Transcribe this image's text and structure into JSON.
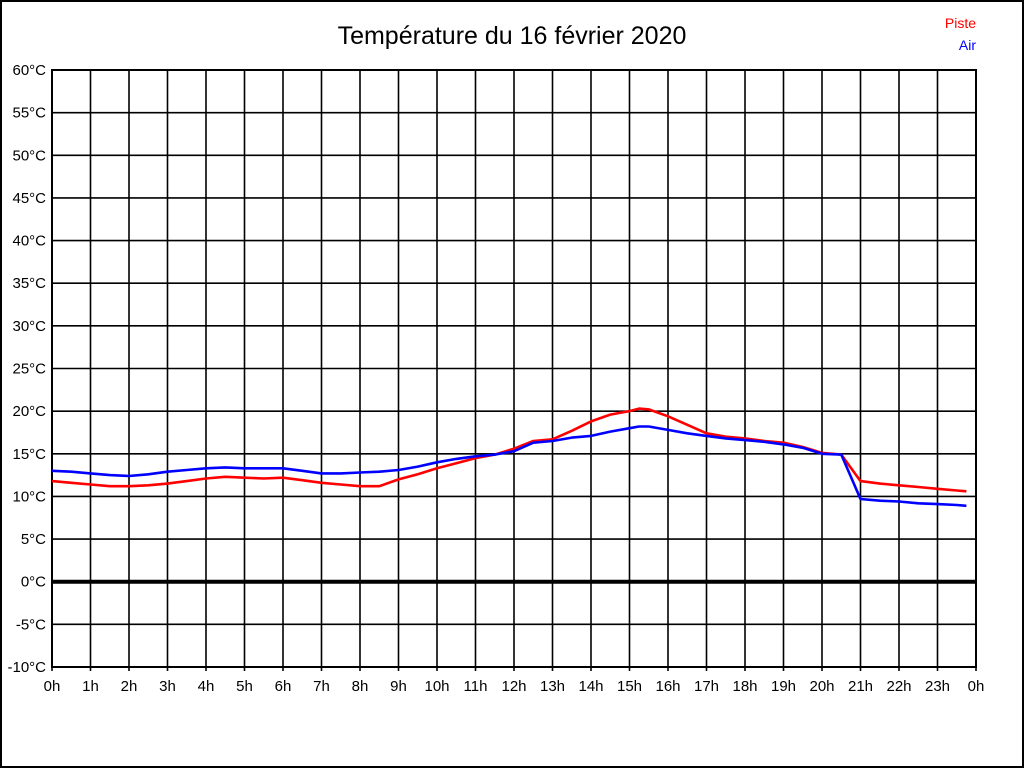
{
  "window": {
    "background": "#ffffff",
    "frame_color": "#000000"
  },
  "chart": {
    "title": "Température du 16 février 2020",
    "legend": [
      {
        "label": "Piste",
        "color": "#ff0000"
      },
      {
        "label": "Air",
        "color": "#0000ff"
      }
    ]
  },
  "chart_data": {
    "type": "line",
    "title": "Température du 16 février 2020",
    "xlabel": "",
    "ylabel": "°C",
    "x_unit": "hour",
    "xlim": [
      0,
      24
    ],
    "ylim": [
      -10,
      60
    ],
    "grid": true,
    "legend_position": "top-right",
    "zero_line": {
      "value": 0,
      "color": "#000000",
      "width": 4
    },
    "x_ticks": [
      {
        "value": 0,
        "label": "0h"
      },
      {
        "value": 1,
        "label": "1h"
      },
      {
        "value": 2,
        "label": "2h"
      },
      {
        "value": 3,
        "label": "3h"
      },
      {
        "value": 4,
        "label": "4h"
      },
      {
        "value": 5,
        "label": "5h"
      },
      {
        "value": 6,
        "label": "6h"
      },
      {
        "value": 7,
        "label": "7h"
      },
      {
        "value": 8,
        "label": "8h"
      },
      {
        "value": 9,
        "label": "9h"
      },
      {
        "value": 10,
        "label": "10h"
      },
      {
        "value": 11,
        "label": "11h"
      },
      {
        "value": 12,
        "label": "12h"
      },
      {
        "value": 13,
        "label": "13h"
      },
      {
        "value": 14,
        "label": "14h"
      },
      {
        "value": 15,
        "label": "15h"
      },
      {
        "value": 16,
        "label": "16h"
      },
      {
        "value": 17,
        "label": "17h"
      },
      {
        "value": 18,
        "label": "18h"
      },
      {
        "value": 19,
        "label": "19h"
      },
      {
        "value": 20,
        "label": "20h"
      },
      {
        "value": 21,
        "label": "21h"
      },
      {
        "value": 22,
        "label": "22h"
      },
      {
        "value": 23,
        "label": "23h"
      },
      {
        "value": 24,
        "label": "0h"
      }
    ],
    "y_ticks": [
      {
        "value": 60,
        "label": "60°C"
      },
      {
        "value": 55,
        "label": "55°C"
      },
      {
        "value": 50,
        "label": "50°C"
      },
      {
        "value": 45,
        "label": "45°C"
      },
      {
        "value": 40,
        "label": "40°C"
      },
      {
        "value": 35,
        "label": "35°C"
      },
      {
        "value": 30,
        "label": "30°C"
      },
      {
        "value": 25,
        "label": "25°C"
      },
      {
        "value": 20,
        "label": "20°C"
      },
      {
        "value": 15,
        "label": "15°C"
      },
      {
        "value": 10,
        "label": "10°C"
      },
      {
        "value": 5,
        "label": "5°C"
      },
      {
        "value": 0,
        "label": "0°C"
      },
      {
        "value": -5,
        "label": "-5°C"
      },
      {
        "value": -10,
        "label": "-10°C"
      }
    ],
    "series": [
      {
        "name": "Piste",
        "color": "#ff0000",
        "points": [
          [
            0,
            11.8
          ],
          [
            0.5,
            11.6
          ],
          [
            1,
            11.4
          ],
          [
            1.5,
            11.2
          ],
          [
            2,
            11.2
          ],
          [
            2.5,
            11.3
          ],
          [
            3,
            11.5
          ],
          [
            3.5,
            11.8
          ],
          [
            4,
            12.1
          ],
          [
            4.5,
            12.3
          ],
          [
            5,
            12.2
          ],
          [
            5.5,
            12.1
          ],
          [
            6,
            12.2
          ],
          [
            6.5,
            11.9
          ],
          [
            7,
            11.6
          ],
          [
            7.5,
            11.4
          ],
          [
            8,
            11.2
          ],
          [
            8.5,
            11.2
          ],
          [
            9,
            12.0
          ],
          [
            9.5,
            12.6
          ],
          [
            10,
            13.3
          ],
          [
            10.5,
            13.9
          ],
          [
            11,
            14.5
          ],
          [
            11.5,
            14.9
          ],
          [
            12,
            15.6
          ],
          [
            12.5,
            16.5
          ],
          [
            13,
            16.7
          ],
          [
            13.5,
            17.7
          ],
          [
            14,
            18.8
          ],
          [
            14.5,
            19.6
          ],
          [
            15,
            20.0
          ],
          [
            15.25,
            20.3
          ],
          [
            15.5,
            20.2
          ],
          [
            16,
            19.4
          ],
          [
            16.5,
            18.4
          ],
          [
            17,
            17.4
          ],
          [
            17.5,
            17.0
          ],
          [
            18,
            16.8
          ],
          [
            18.5,
            16.5
          ],
          [
            19,
            16.3
          ],
          [
            19.5,
            15.8
          ],
          [
            20,
            15.1
          ],
          [
            20.5,
            14.9
          ],
          [
            21,
            11.8
          ],
          [
            21.5,
            11.5
          ],
          [
            22,
            11.3
          ],
          [
            22.5,
            11.1
          ],
          [
            23,
            10.9
          ],
          [
            23.5,
            10.7
          ],
          [
            23.75,
            10.6
          ]
        ]
      },
      {
        "name": "Air",
        "color": "#0000ff",
        "points": [
          [
            0,
            13.0
          ],
          [
            0.5,
            12.9
          ],
          [
            1,
            12.7
          ],
          [
            1.5,
            12.5
          ],
          [
            2,
            12.4
          ],
          [
            2.5,
            12.6
          ],
          [
            3,
            12.9
          ],
          [
            3.5,
            13.1
          ],
          [
            4,
            13.3
          ],
          [
            4.5,
            13.4
          ],
          [
            5,
            13.3
          ],
          [
            5.5,
            13.3
          ],
          [
            6,
            13.3
          ],
          [
            6.5,
            13.0
          ],
          [
            7,
            12.7
          ],
          [
            7.5,
            12.7
          ],
          [
            8,
            12.8
          ],
          [
            8.5,
            12.9
          ],
          [
            9,
            13.1
          ],
          [
            9.5,
            13.5
          ],
          [
            10,
            14.0
          ],
          [
            10.5,
            14.4
          ],
          [
            11,
            14.7
          ],
          [
            11.5,
            14.9
          ],
          [
            12,
            15.3
          ],
          [
            12.5,
            16.3
          ],
          [
            13,
            16.5
          ],
          [
            13.5,
            16.9
          ],
          [
            14,
            17.1
          ],
          [
            14.5,
            17.6
          ],
          [
            15,
            18.0
          ],
          [
            15.25,
            18.2
          ],
          [
            15.5,
            18.2
          ],
          [
            16,
            17.8
          ],
          [
            16.5,
            17.4
          ],
          [
            17,
            17.1
          ],
          [
            17.5,
            16.8
          ],
          [
            18,
            16.6
          ],
          [
            18.5,
            16.4
          ],
          [
            19,
            16.1
          ],
          [
            19.5,
            15.7
          ],
          [
            20,
            15.0
          ],
          [
            20.5,
            14.9
          ],
          [
            21,
            9.7
          ],
          [
            21.5,
            9.5
          ],
          [
            22,
            9.4
          ],
          [
            22.5,
            9.2
          ],
          [
            23,
            9.1
          ],
          [
            23.5,
            9.0
          ],
          [
            23.75,
            8.9
          ]
        ]
      }
    ]
  }
}
